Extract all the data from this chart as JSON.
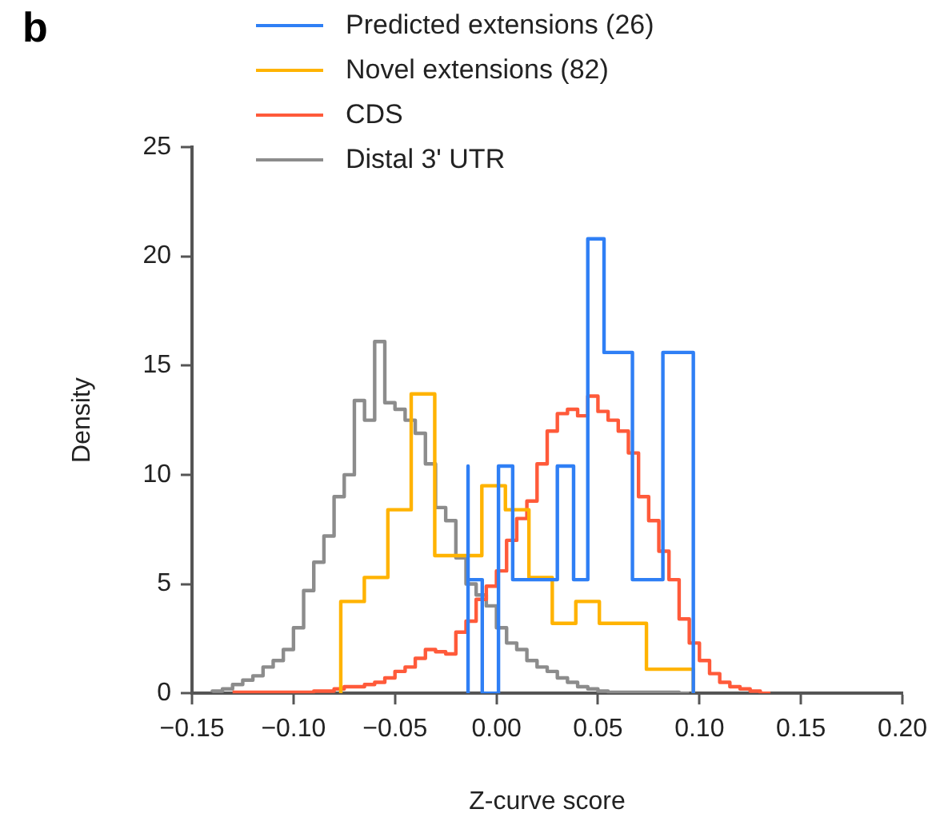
{
  "chart_data": {
    "type": "step",
    "xlabel": "Z-curve score",
    "ylabel": "Density",
    "annotations": [
      "b"
    ],
    "legend": "top",
    "grid": false,
    "xlim": [
      -0.15,
      0.2
    ],
    "xticks": [
      {
        "value": -0.15,
        "label": "−0.15"
      },
      {
        "value": -0.1,
        "label": "−0.10"
      },
      {
        "value": -0.05,
        "label": "−0.05"
      },
      {
        "value": 0,
        "label": "0.00"
      },
      {
        "value": 0.05,
        "label": "0.05"
      },
      {
        "value": 0.1,
        "label": "0.10"
      },
      {
        "value": 0.15,
        "label": "0.15"
      },
      {
        "value": 0.2,
        "label": "0.20"
      }
    ],
    "ylim": [
      0,
      25
    ],
    "yticks": [
      0,
      5,
      10,
      15,
      20,
      25
    ],
    "series": [
      {
        "name": "Predicted extensions (26)",
        "color": "#2f7ff5",
        "x": [
          -0.014,
          -0.014,
          -0.007,
          0.001,
          0.008,
          0.016,
          0.023,
          0.03,
          0.038,
          0.045,
          0.053,
          0.06,
          0.067,
          0.075,
          0.082,
          0.09,
          0.097,
          0.097
        ],
        "values": [
          0,
          10.4,
          5.2,
          0,
          10.4,
          5.2,
          5.2,
          5.2,
          10.4,
          5.2,
          20.8,
          15.6,
          15.6,
          5.2,
          5.2,
          15.6,
          15.6,
          0
        ]
      },
      {
        "name": "Novel extensions (82)",
        "color": "#ffb300",
        "x": [
          -0.0767,
          -0.0767,
          -0.0651,
          -0.0535,
          -0.042,
          -0.0304,
          -0.0188,
          -0.0072,
          0.0044,
          0.016,
          0.0275,
          0.0391,
          0.0507,
          0.0623,
          0.0739,
          0.0855,
          0.097,
          0.097
        ],
        "values": [
          0,
          4.2,
          4.2,
          5.3,
          8.4,
          13.7,
          6.3,
          6.3,
          9.5,
          8.4,
          5.3,
          3.2,
          4.2,
          3.2,
          3.2,
          1.1,
          1.1,
          0
        ]
      },
      {
        "name": "CDS",
        "color": "#ff5a3a",
        "x": [
          -0.13,
          -0.125,
          -0.12,
          -0.115,
          -0.11,
          -0.105,
          -0.1,
          -0.095,
          -0.09,
          -0.085,
          -0.08,
          -0.075,
          -0.07,
          -0.065,
          -0.06,
          -0.055,
          -0.05,
          -0.045,
          -0.04,
          -0.035,
          -0.03,
          -0.025,
          -0.02,
          -0.015,
          -0.01,
          -0.005,
          0,
          0.005,
          0.01,
          0.015,
          0.02,
          0.025,
          0.03,
          0.035,
          0.04,
          0.045,
          0.05,
          0.055,
          0.06,
          0.065,
          0.07,
          0.075,
          0.08,
          0.085,
          0.09,
          0.095,
          0.1,
          0.105,
          0.11,
          0.115,
          0.12,
          0.125,
          0.13,
          0.135
        ],
        "values": [
          0.05,
          0.05,
          0.05,
          0.05,
          0.05,
          0.05,
          0.05,
          0.05,
          0.05,
          0.1,
          0.1,
          0.2,
          0.3,
          0.3,
          0.4,
          0.5,
          0.7,
          1.0,
          1.2,
          1.6,
          2.0,
          1.9,
          1.8,
          2.8,
          3.3,
          4.3,
          4.9,
          5.6,
          7.0,
          8.0,
          8.8,
          10.5,
          12.0,
          12.8,
          13.0,
          12.7,
          13.6,
          12.9,
          12.5,
          12.0,
          11.0,
          9.0,
          7.9,
          6.5,
          5.2,
          3.4,
          2.3,
          1.5,
          0.9,
          0.5,
          0.3,
          0.2,
          0.1,
          0
        ]
      },
      {
        "name": "Distal 3' UTR",
        "color": "#8c8c8c",
        "x": [
          -0.14,
          -0.135,
          -0.13,
          -0.125,
          -0.12,
          -0.115,
          -0.11,
          -0.105,
          -0.1,
          -0.095,
          -0.09,
          -0.085,
          -0.08,
          -0.075,
          -0.07,
          -0.065,
          -0.06,
          -0.055,
          -0.05,
          -0.045,
          -0.04,
          -0.035,
          -0.03,
          -0.025,
          -0.02,
          -0.015,
          -0.01,
          -0.005,
          0,
          0.005,
          0.01,
          0.015,
          0.02,
          0.025,
          0.03,
          0.035,
          0.04,
          0.045,
          0.05,
          0.055,
          0.06,
          0.065,
          0.07,
          0.075,
          0.08,
          0.085,
          0.09,
          0.095
        ],
        "values": [
          0.05,
          0.1,
          0.2,
          0.4,
          0.6,
          0.8,
          1.2,
          1.5,
          2.0,
          3.0,
          4.7,
          6.0,
          7.2,
          9.0,
          10.0,
          13.4,
          12.5,
          16.1,
          13.3,
          13.0,
          12.5,
          11.9,
          10.5,
          8.5,
          7.9,
          6.2,
          5.0,
          4.5,
          4.0,
          3.0,
          2.3,
          2.0,
          1.5,
          1.2,
          1.0,
          0.7,
          0.5,
          0.3,
          0.2,
          0.1,
          0.05,
          0.05,
          0.05,
          0.05,
          0.05,
          0.05,
          0.05,
          0
        ]
      }
    ]
  }
}
